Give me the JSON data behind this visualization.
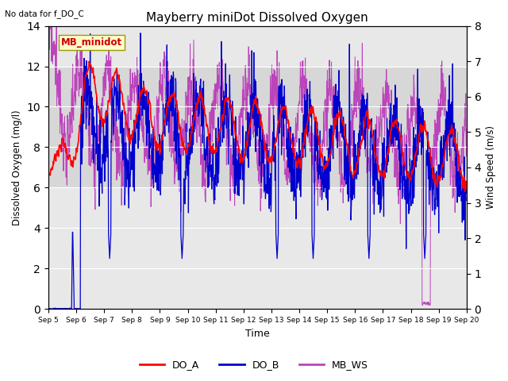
{
  "title": "Mayberry miniDot Dissolved Oxygen",
  "top_left_note": "No data for f_DO_C",
  "legend_box_label": "MB_minidot",
  "xlabel": "Time",
  "ylabel_left": "Dissolved Oxygen (mg/l)",
  "ylabel_right": "Wind Speed (m/s)",
  "ylim_left": [
    0,
    14
  ],
  "ylim_right": [
    0.0,
    8.0
  ],
  "yticks_left": [
    0,
    2,
    4,
    6,
    8,
    10,
    12,
    14
  ],
  "yticks_right": [
    0.0,
    1.0,
    2.0,
    3.0,
    4.0,
    5.0,
    6.0,
    7.0,
    8.0
  ],
  "xtick_labels": [
    "Sep 5",
    "Sep 6",
    "Sep 7",
    "Sep 8",
    "Sep 9",
    "Sep 10",
    "Sep 11",
    "Sep 12",
    "Sep 13",
    "Sep 14",
    "Sep 15",
    "Sep 16",
    "Sep 17",
    "Sep 18",
    "Sep 19",
    "Sep 20"
  ],
  "shading_ylim": [
    6,
    12
  ],
  "color_DO_A": "#ff0000",
  "color_DO_B": "#0000cd",
  "color_MB_WS": "#bb44bb",
  "background_color": "#ffffff",
  "plot_bg_color": "#e8e8e8",
  "legend_entries": [
    "DO_A",
    "DO_B",
    "MB_WS"
  ],
  "legend_colors": [
    "#ff0000",
    "#0000cd",
    "#bb44bb"
  ],
  "lw_DO_A": 1.2,
  "lw_DO_B": 0.9,
  "lw_MB_WS": 0.7
}
